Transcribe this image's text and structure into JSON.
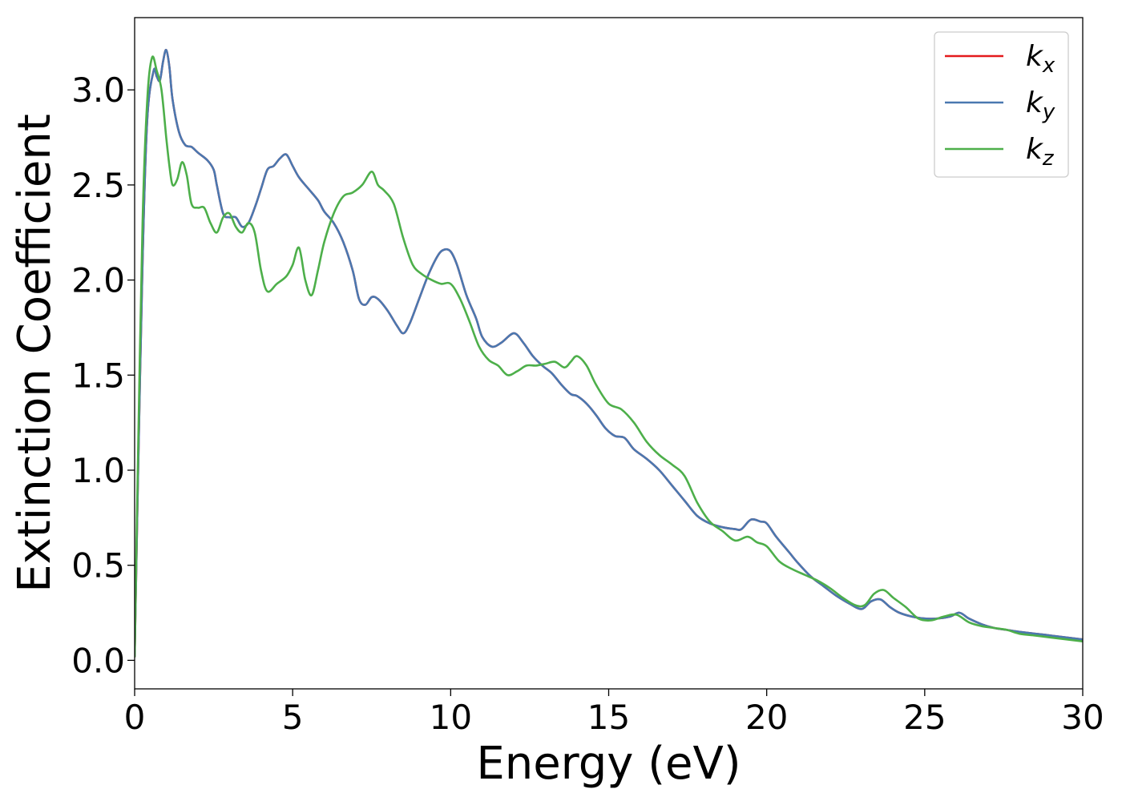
{
  "chart_data": {
    "type": "line",
    "title": "",
    "xlabel": "Energy (eV)",
    "ylabel": "Extinction Coefficient",
    "xlim": [
      0,
      30
    ],
    "ylim": [
      -0.15,
      3.38
    ],
    "xticks": [
      0,
      5,
      10,
      15,
      20,
      25,
      30
    ],
    "xtick_labels": [
      "0",
      "5",
      "10",
      "15",
      "20",
      "25",
      "30"
    ],
    "yticks": [
      0.0,
      0.5,
      1.0,
      1.5,
      2.0,
      2.5,
      3.0
    ],
    "ytick_labels": [
      "0.0",
      "0.5",
      "1.0",
      "1.5",
      "2.0",
      "2.5",
      "3.0"
    ],
    "grid": false,
    "legend": {
      "position": "top-right"
    },
    "series": [
      {
        "name": "k",
        "subscript": "x",
        "color": "#e41a1c",
        "x": [
          0,
          0.1,
          0.25,
          0.4,
          0.6,
          0.7,
          0.8,
          0.9,
          1.0,
          1.1,
          1.2,
          1.4,
          1.6,
          1.8,
          2.0,
          2.3,
          2.5,
          2.6,
          2.8,
          3.0,
          3.2,
          3.4,
          3.6,
          3.8,
          4.0,
          4.2,
          4.4,
          4.6,
          4.8,
          5.0,
          5.2,
          5.5,
          5.8,
          6.0,
          6.3,
          6.6,
          6.9,
          7.1,
          7.3,
          7.5,
          7.7,
          8.0,
          8.3,
          8.5,
          8.7,
          9.0,
          9.3,
          9.6,
          9.8,
          10.0,
          10.2,
          10.5,
          10.8,
          11.0,
          11.3,
          11.6,
          12.0,
          12.3,
          12.6,
          12.9,
          13.2,
          13.5,
          13.8,
          14.0,
          14.3,
          14.6,
          14.9,
          15.2,
          15.5,
          15.8,
          16.2,
          16.6,
          17.0,
          17.4,
          17.8,
          18.2,
          18.6,
          19.0,
          19.2,
          19.5,
          19.8,
          20.0,
          20.3,
          20.7,
          21.0,
          21.4,
          21.8,
          22.2,
          22.6,
          23.0,
          23.3,
          23.6,
          23.9,
          24.2,
          24.6,
          25.0,
          25.4,
          25.8,
          26.1,
          26.4,
          26.8,
          27.2,
          27.6,
          28.0,
          28.5,
          29.0,
          29.5,
          30.0
        ],
        "y": [
          0.02,
          0.9,
          2.1,
          2.85,
          3.1,
          3.07,
          3.05,
          3.15,
          3.21,
          3.12,
          2.95,
          2.78,
          2.71,
          2.7,
          2.67,
          2.63,
          2.58,
          2.5,
          2.35,
          2.33,
          2.33,
          2.28,
          2.3,
          2.38,
          2.48,
          2.58,
          2.6,
          2.64,
          2.66,
          2.6,
          2.54,
          2.48,
          2.42,
          2.36,
          2.3,
          2.2,
          2.05,
          1.9,
          1.87,
          1.91,
          1.9,
          1.84,
          1.76,
          1.72,
          1.77,
          1.9,
          2.03,
          2.13,
          2.16,
          2.15,
          2.08,
          1.92,
          1.8,
          1.7,
          1.65,
          1.67,
          1.72,
          1.67,
          1.6,
          1.55,
          1.51,
          1.45,
          1.4,
          1.39,
          1.35,
          1.29,
          1.22,
          1.18,
          1.17,
          1.11,
          1.06,
          1.0,
          0.92,
          0.84,
          0.76,
          0.72,
          0.7,
          0.69,
          0.69,
          0.74,
          0.73,
          0.72,
          0.65,
          0.57,
          0.51,
          0.44,
          0.39,
          0.34,
          0.3,
          0.27,
          0.31,
          0.32,
          0.28,
          0.25,
          0.23,
          0.22,
          0.22,
          0.23,
          0.25,
          0.22,
          0.19,
          0.17,
          0.16,
          0.15,
          0.14,
          0.13,
          0.12,
          0.11
        ]
      },
      {
        "name": "k",
        "subscript": "y",
        "color": "#4a78b0",
        "x": [
          0,
          0.1,
          0.25,
          0.4,
          0.6,
          0.7,
          0.8,
          0.9,
          1.0,
          1.1,
          1.2,
          1.4,
          1.6,
          1.8,
          2.0,
          2.3,
          2.5,
          2.6,
          2.8,
          3.0,
          3.2,
          3.4,
          3.6,
          3.8,
          4.0,
          4.2,
          4.4,
          4.6,
          4.8,
          5.0,
          5.2,
          5.5,
          5.8,
          6.0,
          6.3,
          6.6,
          6.9,
          7.1,
          7.3,
          7.5,
          7.7,
          8.0,
          8.3,
          8.5,
          8.7,
          9.0,
          9.3,
          9.6,
          9.8,
          10.0,
          10.2,
          10.5,
          10.8,
          11.0,
          11.3,
          11.6,
          12.0,
          12.3,
          12.6,
          12.9,
          13.2,
          13.5,
          13.8,
          14.0,
          14.3,
          14.6,
          14.9,
          15.2,
          15.5,
          15.8,
          16.2,
          16.6,
          17.0,
          17.4,
          17.8,
          18.2,
          18.6,
          19.0,
          19.2,
          19.5,
          19.8,
          20.0,
          20.3,
          20.7,
          21.0,
          21.4,
          21.8,
          22.2,
          22.6,
          23.0,
          23.3,
          23.6,
          23.9,
          24.2,
          24.6,
          25.0,
          25.4,
          25.8,
          26.1,
          26.4,
          26.8,
          27.2,
          27.6,
          28.0,
          28.5,
          29.0,
          29.5,
          30.0
        ],
        "y": [
          0.02,
          0.9,
          2.1,
          2.85,
          3.1,
          3.07,
          3.05,
          3.15,
          3.21,
          3.12,
          2.95,
          2.78,
          2.71,
          2.7,
          2.67,
          2.63,
          2.58,
          2.5,
          2.35,
          2.33,
          2.33,
          2.28,
          2.3,
          2.38,
          2.48,
          2.58,
          2.6,
          2.64,
          2.66,
          2.6,
          2.54,
          2.48,
          2.42,
          2.36,
          2.3,
          2.2,
          2.05,
          1.9,
          1.87,
          1.91,
          1.9,
          1.84,
          1.76,
          1.72,
          1.77,
          1.9,
          2.03,
          2.13,
          2.16,
          2.15,
          2.08,
          1.92,
          1.8,
          1.7,
          1.65,
          1.67,
          1.72,
          1.67,
          1.6,
          1.55,
          1.51,
          1.45,
          1.4,
          1.39,
          1.35,
          1.29,
          1.22,
          1.18,
          1.17,
          1.11,
          1.06,
          1.0,
          0.92,
          0.84,
          0.76,
          0.72,
          0.7,
          0.69,
          0.69,
          0.74,
          0.73,
          0.72,
          0.65,
          0.57,
          0.51,
          0.44,
          0.39,
          0.34,
          0.3,
          0.27,
          0.31,
          0.32,
          0.28,
          0.25,
          0.23,
          0.22,
          0.22,
          0.23,
          0.25,
          0.22,
          0.19,
          0.17,
          0.16,
          0.15,
          0.14,
          0.13,
          0.12,
          0.11
        ]
      },
      {
        "name": "k",
        "subscript": "z",
        "color": "#4daf4a",
        "x": [
          0,
          0.1,
          0.25,
          0.4,
          0.55,
          0.7,
          0.85,
          1.0,
          1.1,
          1.2,
          1.35,
          1.5,
          1.65,
          1.8,
          2.0,
          2.2,
          2.4,
          2.6,
          2.8,
          3.0,
          3.2,
          3.4,
          3.6,
          3.8,
          4.0,
          4.2,
          4.5,
          4.8,
          5.0,
          5.2,
          5.4,
          5.6,
          5.8,
          6.0,
          6.3,
          6.6,
          6.9,
          7.2,
          7.5,
          7.7,
          7.9,
          8.2,
          8.5,
          8.8,
          9.1,
          9.4,
          9.7,
          10.0,
          10.3,
          10.6,
          10.9,
          11.2,
          11.5,
          11.8,
          12.1,
          12.4,
          12.7,
          13.0,
          13.3,
          13.6,
          13.8,
          14.0,
          14.3,
          14.6,
          15.0,
          15.4,
          15.8,
          16.2,
          16.6,
          17.0,
          17.4,
          17.8,
          18.2,
          18.6,
          19.0,
          19.4,
          19.7,
          20.0,
          20.4,
          20.8,
          21.2,
          21.6,
          22.0,
          22.4,
          22.8,
          23.1,
          23.4,
          23.7,
          24.0,
          24.4,
          24.8,
          25.2,
          25.6,
          26.0,
          26.4,
          26.8,
          27.2,
          27.6,
          28.0,
          28.5,
          29.0,
          29.5,
          30.0
        ],
        "y": [
          0.02,
          1.0,
          2.3,
          2.95,
          3.17,
          3.1,
          3.0,
          2.75,
          2.6,
          2.5,
          2.53,
          2.62,
          2.55,
          2.4,
          2.38,
          2.38,
          2.3,
          2.25,
          2.33,
          2.35,
          2.28,
          2.25,
          2.3,
          2.25,
          2.05,
          1.94,
          1.98,
          2.02,
          2.08,
          2.17,
          2.0,
          1.92,
          2.05,
          2.2,
          2.35,
          2.44,
          2.46,
          2.5,
          2.57,
          2.5,
          2.47,
          2.4,
          2.22,
          2.08,
          2.03,
          2.0,
          1.98,
          1.98,
          1.9,
          1.78,
          1.65,
          1.58,
          1.55,
          1.5,
          1.52,
          1.55,
          1.55,
          1.56,
          1.57,
          1.54,
          1.57,
          1.6,
          1.55,
          1.45,
          1.35,
          1.32,
          1.25,
          1.15,
          1.08,
          1.03,
          0.97,
          0.83,
          0.73,
          0.68,
          0.63,
          0.65,
          0.62,
          0.6,
          0.52,
          0.48,
          0.45,
          0.42,
          0.38,
          0.33,
          0.29,
          0.29,
          0.35,
          0.37,
          0.33,
          0.28,
          0.22,
          0.21,
          0.23,
          0.24,
          0.2,
          0.18,
          0.17,
          0.16,
          0.14,
          0.13,
          0.12,
          0.11,
          0.1
        ]
      }
    ]
  }
}
